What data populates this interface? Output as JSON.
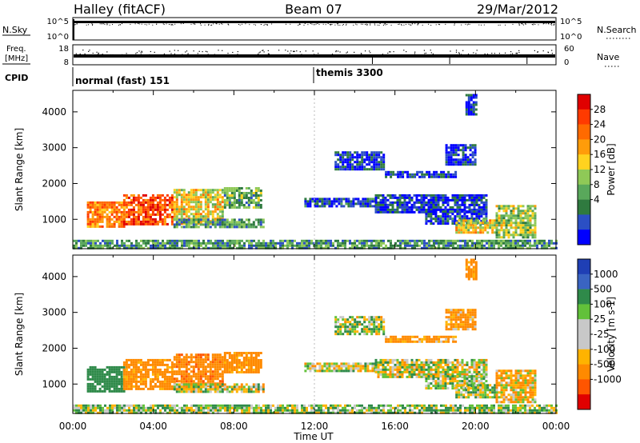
{
  "header": {
    "station": "Halley (fitACF)",
    "beam": "Beam 07",
    "date": "29/Mar/2012"
  },
  "meta_panels": {
    "nsky_label": "N.Sky",
    "nsky_ticks": [
      "10^5",
      "10^0"
    ],
    "nsearch_label": "N.Search",
    "nsearch_ticks": [
      "10^5",
      "10^0"
    ],
    "freq_label_1": "Freq.",
    "freq_label_2": "[MHz]",
    "freq_ticks": [
      "18",
      "8"
    ],
    "nave_label": "Nave",
    "nave_ticks": [
      "60",
      "0"
    ],
    "cpid_label": "CPID",
    "cpid_segments": [
      {
        "name": "normal (fast) 151",
        "start": "00:00",
        "end": "12:00"
      },
      {
        "name": "themis 3300",
        "start": "12:00",
        "end": "24:00"
      }
    ]
  },
  "chart_data": [
    {
      "type": "heatmap",
      "name": "Power",
      "ylabel": "Slant Range [km]",
      "y_ticks": [
        "4000",
        "3000",
        "2000",
        "1000"
      ],
      "ylim": [
        180,
        4600
      ],
      "xlim": [
        0,
        24
      ],
      "colorbar_label": "Power [dB]",
      "colorbar_ticks": [
        "28",
        "24",
        "20",
        "16",
        "12",
        "8",
        "4"
      ],
      "colorbar_colors": [
        "#0000ff",
        "#2b4fc4",
        "#2f7a3f",
        "#59a85b",
        "#8fc957",
        "#ffd21f",
        "#ff9c0a",
        "#ff6a00",
        "#ff3a00",
        "#e00000"
      ],
      "regions": [
        {
          "t0": 0.7,
          "t1": 2.5,
          "r0": 820,
          "r1": 1500,
          "level": 0.72
        },
        {
          "t0": 2.5,
          "t1": 5.0,
          "r0": 850,
          "r1": 1700,
          "level": 0.82
        },
        {
          "t0": 5.0,
          "t1": 7.5,
          "r0": 900,
          "r1": 1850,
          "level": 0.55
        },
        {
          "t0": 7.5,
          "t1": 9.3,
          "r0": 1300,
          "r1": 1900,
          "level": 0.35
        },
        {
          "t0": 5.0,
          "t1": 9.5,
          "r0": 780,
          "r1": 1020,
          "level": 0.3
        },
        {
          "t0": 11.5,
          "t1": 15.0,
          "r0": 1350,
          "r1": 1600,
          "level": 0.15
        },
        {
          "t0": 13.0,
          "t1": 15.5,
          "r0": 2400,
          "r1": 2900,
          "level": 0.12
        },
        {
          "t0": 15.5,
          "t1": 19.0,
          "r0": 2150,
          "r1": 2350,
          "level": 0.1
        },
        {
          "t0": 15.0,
          "t1": 20.5,
          "r0": 1200,
          "r1": 1700,
          "level": 0.12
        },
        {
          "t0": 17.5,
          "t1": 20.5,
          "r0": 850,
          "r1": 1250,
          "level": 0.15
        },
        {
          "t0": 19.0,
          "t1": 21.0,
          "r0": 650,
          "r1": 1000,
          "level": 0.55
        },
        {
          "t0": 18.5,
          "t1": 20.0,
          "r0": 2500,
          "r1": 3100,
          "level": 0.1
        },
        {
          "t0": 19.5,
          "t1": 20.0,
          "r0": 3900,
          "r1": 4500,
          "level": 0.1
        },
        {
          "t0": 21.0,
          "t1": 23.0,
          "r0": 500,
          "r1": 1400,
          "level": 0.45
        },
        {
          "t0": 0.0,
          "t1": 24.0,
          "r0": 200,
          "r1": 430,
          "level": 0.3
        }
      ]
    },
    {
      "type": "heatmap",
      "name": "Velocity",
      "ylabel": "Slant Range [km]",
      "y_ticks": [
        "4000",
        "3000",
        "2000",
        "1000"
      ],
      "ylim": [
        180,
        4600
      ],
      "xlim": [
        0,
        24
      ],
      "xlabel": "Time UT",
      "x_ticks": [
        "00:00",
        "04:00",
        "08:00",
        "12:00",
        "16:00",
        "20:00",
        "00:00"
      ],
      "colorbar_label": "Velocity [m s-1]",
      "colorbar_ticks": [
        "1000",
        "500",
        "100",
        "25",
        "-25",
        "-100",
        "-500",
        "-1000"
      ],
      "colorbar_colors": [
        "#1f3fb5",
        "#3a64c2",
        "#2f8a4a",
        "#62c13a",
        "#c8c8c8",
        "#c8c8c8",
        "#ffb300",
        "#ff8a00",
        "#ff5500",
        "#e00000"
      ],
      "regions": [
        {
          "t0": 0.7,
          "t1": 2.5,
          "r0": 820,
          "r1": 1500,
          "vel": 300
        },
        {
          "t0": 2.5,
          "t1": 5.0,
          "r0": 850,
          "r1": 1700,
          "vel": -200
        },
        {
          "t0": 5.0,
          "t1": 7.5,
          "r0": 900,
          "r1": 1850,
          "vel": -400
        },
        {
          "t0": 7.5,
          "t1": 9.3,
          "r0": 1300,
          "r1": 1900,
          "vel": -200
        },
        {
          "t0": 5.0,
          "t1": 9.5,
          "r0": 780,
          "r1": 1020,
          "vel": 0
        },
        {
          "t0": 11.5,
          "t1": 15.0,
          "r0": 1350,
          "r1": 1600,
          "vel": 0
        },
        {
          "t0": 13.0,
          "t1": 15.5,
          "r0": 2400,
          "r1": 2900,
          "vel": 40
        },
        {
          "t0": 15.5,
          "t1": 19.0,
          "r0": 2150,
          "r1": 2350,
          "vel": -150
        },
        {
          "t0": 15.0,
          "t1": 20.5,
          "r0": 1200,
          "r1": 1700,
          "vel": 0
        },
        {
          "t0": 17.5,
          "t1": 20.5,
          "r0": 850,
          "r1": 1250,
          "vel": 20
        },
        {
          "t0": 19.0,
          "t1": 21.0,
          "r0": 650,
          "r1": 1000,
          "vel": 60
        },
        {
          "t0": 18.5,
          "t1": 20.0,
          "r0": 2500,
          "r1": 3100,
          "vel": -150
        },
        {
          "t0": 19.5,
          "t1": 20.0,
          "r0": 3900,
          "r1": 4500,
          "vel": -200
        },
        {
          "t0": 21.0,
          "t1": 23.0,
          "r0": 500,
          "r1": 1400,
          "vel": -80
        },
        {
          "t0": 0.0,
          "t1": 24.0,
          "r0": 200,
          "r1": 430,
          "vel": 60
        }
      ]
    }
  ]
}
